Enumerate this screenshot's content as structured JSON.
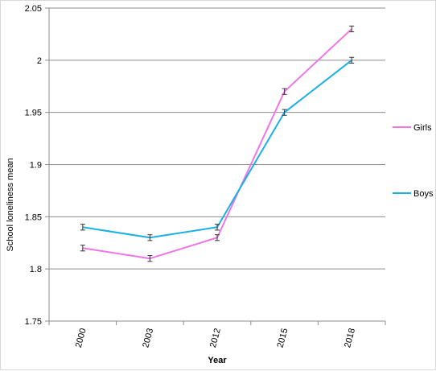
{
  "chart_data": {
    "type": "line",
    "title": "",
    "xlabel": "Year",
    "ylabel": "School loneliness mean",
    "categories": [
      "2000",
      "2003",
      "2012",
      "2015",
      "2018"
    ],
    "ylim": [
      1.75,
      2.05
    ],
    "yticks": [
      "1.75",
      "1.8",
      "1.85",
      "1.9",
      "1.95",
      "2",
      "2.05"
    ],
    "grid": true,
    "legend_position": "right",
    "error_bars": true,
    "series": [
      {
        "name": "Girls",
        "color": "#f075e6",
        "values": [
          1.82,
          1.81,
          1.83,
          1.97,
          2.03
        ],
        "error": [
          0.002,
          0.002,
          0.002,
          0.002,
          0.002
        ]
      },
      {
        "name": "Boys",
        "color": "#1aafe6",
        "values": [
          1.84,
          1.83,
          1.84,
          1.95,
          2.0
        ],
        "error": [
          0.002,
          0.002,
          0.002,
          0.002,
          0.002
        ]
      }
    ]
  }
}
